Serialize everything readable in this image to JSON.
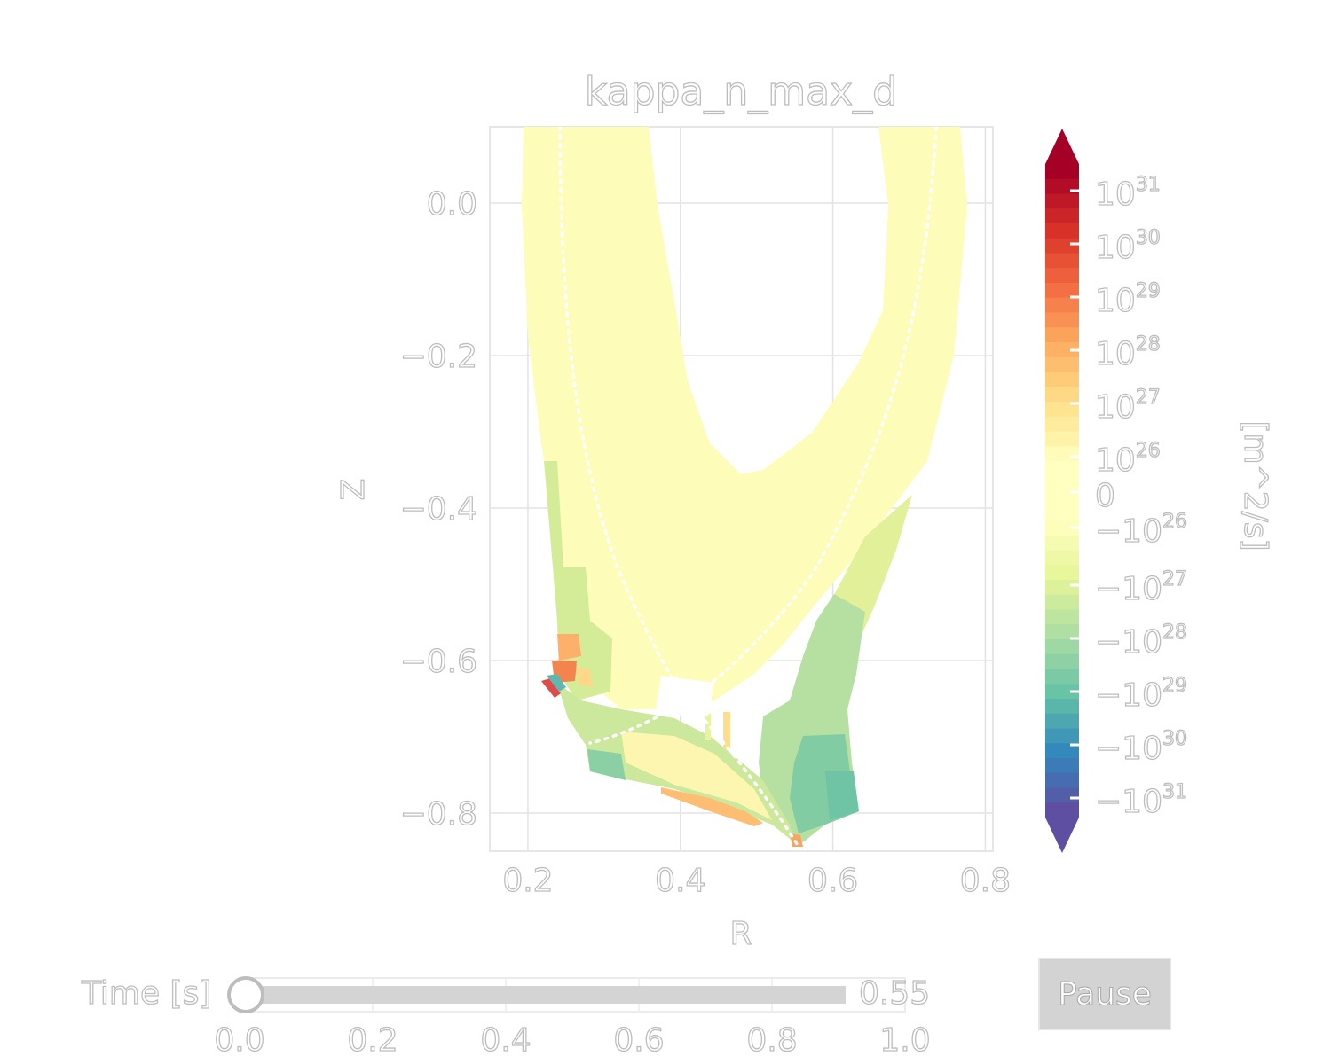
{
  "chart_data": {
    "type": "heatmap",
    "title": "kappa_n_max_d",
    "xlabel": "R",
    "ylabel": "Z",
    "xlim": [
      0.15,
      0.81
    ],
    "ylim": [
      -0.85,
      0.1
    ],
    "xticks": [
      "0.2",
      "0.4",
      "0.6",
      "0.8"
    ],
    "xtick_values": [
      0.2,
      0.4,
      0.6,
      0.8
    ],
    "yticks": [
      "0.0",
      "−0.2",
      "−0.4",
      "−0.6",
      "−0.8"
    ],
    "ytick_values": [
      0.0,
      -0.2,
      -0.4,
      -0.6,
      -0.8
    ],
    "grid": true,
    "colormap": "Spectral_r",
    "colorbar": {
      "label": "[m^2/s]",
      "scale": "symlog",
      "ticks": [
        "10^31",
        "10^30",
        "10^29",
        "10^28",
        "10^27",
        "10^26",
        "0",
        "−10^26",
        "−10^27",
        "−10^28",
        "−10^29",
        "−10^30",
        "−10^31"
      ],
      "extend": "both"
    }
  },
  "slider": {
    "label": "Time [s]",
    "value": 0.55,
    "value_text": "0.55",
    "min": 0.0,
    "max": 1.0,
    "ticks": [
      "0.0",
      "0.2",
      "0.4",
      "0.6",
      "0.8",
      "1.0"
    ]
  },
  "button": {
    "label": "Pause"
  },
  "colors": {
    "core": "#fdfdb9",
    "track": "#d4d4d4",
    "grid": "#e3e3e3"
  }
}
